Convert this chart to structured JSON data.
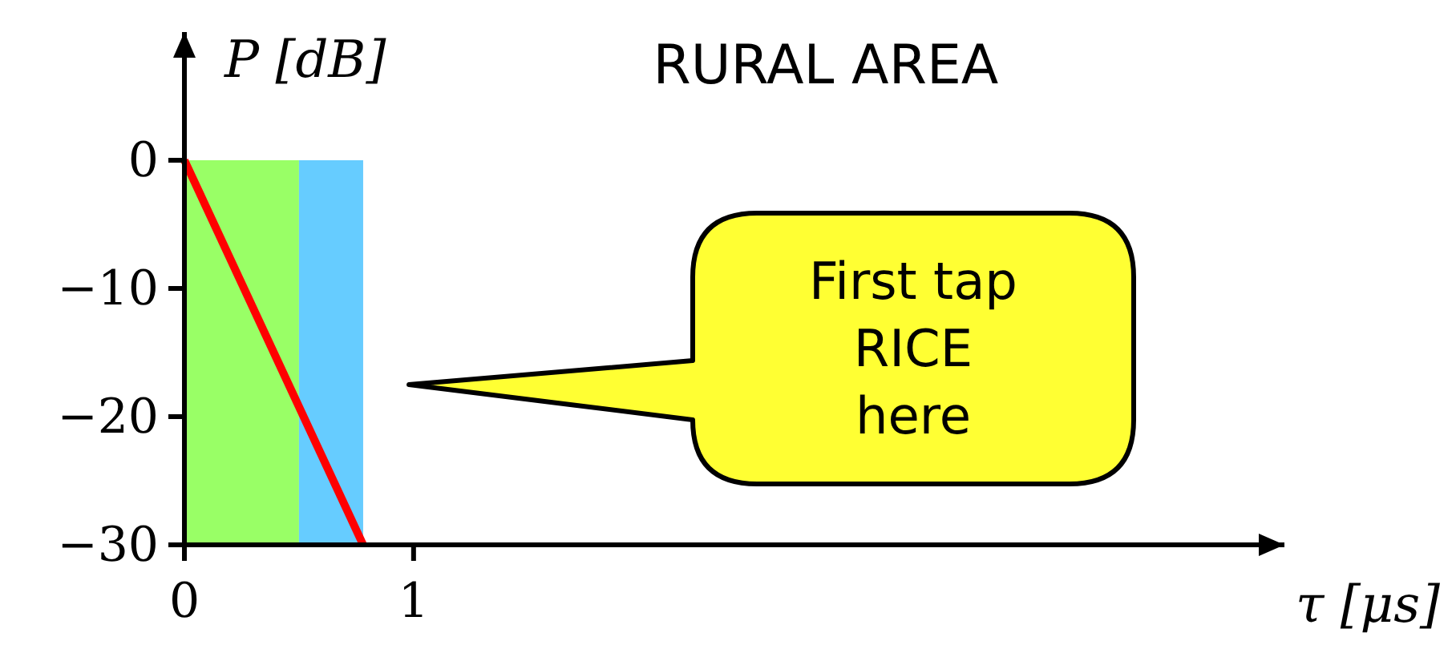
{
  "chart_data": {
    "type": "line",
    "title": "RURAL AREA",
    "xlabel": "τ [μs]",
    "ylabel": "P [dB]",
    "xlim": [
      0,
      4.8
    ],
    "ylim": [
      -30,
      10
    ],
    "xticks": [
      0,
      1
    ],
    "yticks": [
      0,
      {
        "value": -10,
        "label": "−10"
      },
      {
        "value": -20,
        "label": "−20"
      },
      {
        "value": -30,
        "label": "−30"
      }
    ],
    "series": [
      {
        "color": "#ff0000",
        "x": [
          0,
          0.78
        ],
        "values": [
          0,
          -30
        ]
      }
    ],
    "bands": [
      {
        "axis": "x",
        "from": 0,
        "to": 0.5,
        "color": "#99ff66"
      },
      {
        "axis": "x",
        "from": 0.5,
        "to": 0.78,
        "color": "#66ccff"
      }
    ],
    "annotations": [
      "First tap\nRICE\nhere"
    ],
    "grid": false
  }
}
